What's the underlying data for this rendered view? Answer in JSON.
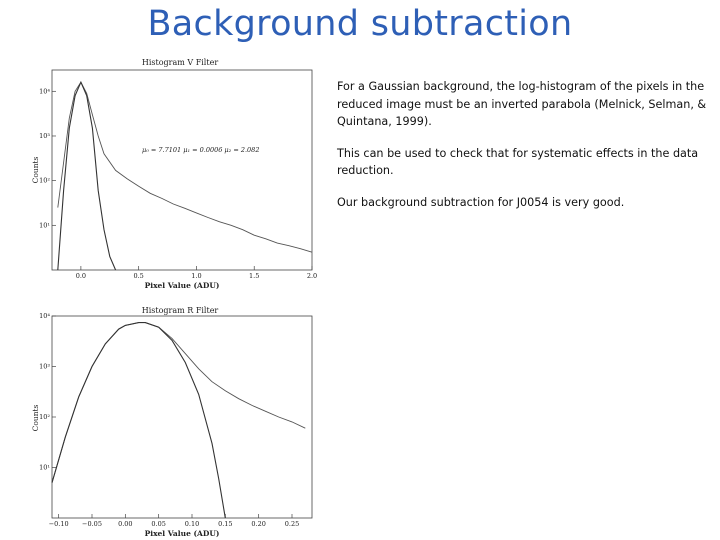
{
  "slide": {
    "title": "Background subtraction",
    "paragraphs": [
      "For a Gaussian background, the log-histogram of the pixels in the reduced image must be an inverted parabola (Melnick, Selman, & Quintana, 1999).",
      "This can be used to check that for systematic effects in the data reduction.",
      "Our background subtraction for J0054 is very good."
    ]
  },
  "figures": {
    "v": {
      "title": "Histogram V Filter",
      "xlabel": "Pixel Value (ADU)",
      "ylabel": "Counts",
      "annotation": "μ₀ = 7.7101 μ₁ = 0.0006 μ₂ = 2.082",
      "x_ticks": [
        "0.0",
        "0.5",
        "1.0",
        "1.5",
        "2.0"
      ],
      "y_ticks": [
        "10⁴",
        "10³",
        "10²",
        "10¹"
      ]
    },
    "r": {
      "title": "Histogram R Filter",
      "xlabel": "Pixel Value (ADU)",
      "ylabel": "Counts",
      "x_ticks": [
        "−0.10",
        "−0.05",
        "0.00",
        "0.05",
        "0.10",
        "0.15",
        "0.20",
        "0.25"
      ],
      "y_ticks": [
        "10⁴",
        "10³",
        "10²",
        "10¹"
      ]
    }
  },
  "chart_data": [
    {
      "type": "line",
      "title": "Histogram V Filter",
      "xlabel": "Pixel Value (ADU)",
      "ylabel": "Counts",
      "xlim": [
        -0.25,
        2.0
      ],
      "ylim": [
        1,
        30000
      ],
      "y_scale": "log",
      "series": [
        {
          "x": [
            -0.2,
            -0.1,
            -0.05,
            0.0,
            0.05,
            0.1,
            0.15,
            0.2,
            0.3,
            0.4,
            0.5,
            0.6,
            0.7,
            0.8,
            0.9,
            1.0,
            1.1,
            1.2,
            1.3,
            1.4,
            1.5,
            1.6,
            1.7,
            1.8,
            1.9,
            2.0
          ],
          "y": [
            25,
            2500,
            10000,
            16000,
            9000,
            3000,
            1000,
            400,
            170,
            110,
            75,
            52,
            40,
            30,
            24,
            19,
            15,
            12,
            10,
            8,
            6,
            5,
            4,
            3.5,
            3,
            2.5
          ]
        },
        {
          "x": [
            -0.2,
            -0.15,
            -0.1,
            -0.05,
            0.0,
            0.05,
            0.1,
            0.15,
            0.2,
            0.25,
            0.3
          ],
          "y": [
            1,
            60,
            1500,
            8000,
            16000,
            8000,
            1500,
            60,
            8,
            2,
            1
          ]
        }
      ]
    },
    {
      "type": "line",
      "title": "Histogram R Filter",
      "xlabel": "Pixel Value (ADU)",
      "ylabel": "Counts",
      "xlim": [
        -0.11,
        0.28
      ],
      "ylim": [
        1,
        10000
      ],
      "y_scale": "log",
      "series": [
        {
          "x": [
            -0.11,
            -0.09,
            -0.07,
            -0.05,
            -0.03,
            -0.01,
            0.0,
            0.02,
            0.03,
            0.05,
            0.07,
            0.09,
            0.11,
            0.13,
            0.15,
            0.17,
            0.19,
            0.21,
            0.23,
            0.25,
            0.27
          ],
          "y": [
            5,
            40,
            250,
            1000,
            2800,
            5500,
            6500,
            7400,
            7400,
            6000,
            3600,
            1800,
            900,
            500,
            330,
            230,
            170,
            130,
            100,
            80,
            60
          ]
        },
        {
          "x": [
            -0.11,
            -0.09,
            -0.07,
            -0.05,
            -0.03,
            -0.01,
            0.0,
            0.02,
            0.03,
            0.05,
            0.07,
            0.09,
            0.11,
            0.13,
            0.14,
            0.15
          ],
          "y": [
            5,
            40,
            250,
            1000,
            2800,
            5500,
            6500,
            7400,
            7400,
            6000,
            3300,
            1200,
            280,
            30,
            6,
            1
          ]
        }
      ]
    }
  ]
}
